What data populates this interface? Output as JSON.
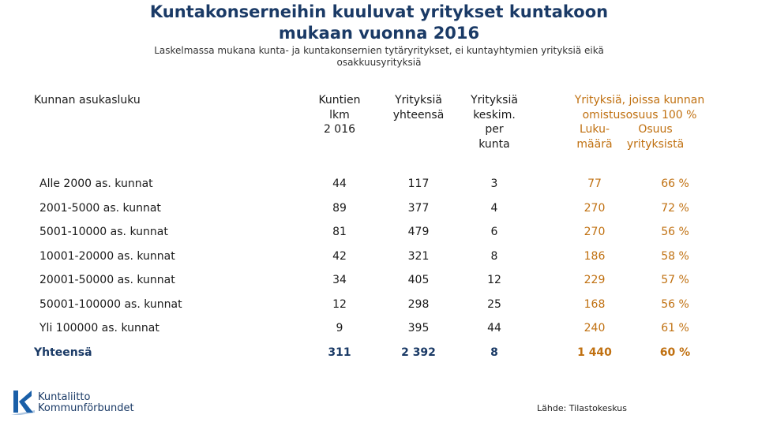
{
  "title_line1": "Kuntakonserneihin kuuluvat yritykset kuntakoon",
  "title_line2": "mukaan vuonna 2016",
  "subtitle_line1": "Laskelmassa mukana kunta- ja kuntakonsernien tytäryritykset, ei kuntayhtymien yrityksiä eikä",
  "subtitle_line2": "osakkuusyrityksiä",
  "headers": {
    "col1": "Kunnan asukasluku",
    "col2": [
      "Kuntien",
      "lkm",
      "2 016"
    ],
    "col3": [
      "Yrityksiä",
      "yhteensä"
    ],
    "col4": [
      "Yrityksiä",
      "keskim.",
      "per",
      "kunta"
    ],
    "group": [
      "Yrityksiä, joissa kunnan",
      "omistusosuus 100 %"
    ],
    "col5": [
      "Luku-",
      "määrä"
    ],
    "col6": [
      "Osuus",
      "yrityksistä"
    ]
  },
  "rows": [
    {
      "label": "Alle 2000 as. kunnat",
      "kuntia": "44",
      "yrityksia": "117",
      "keskim": "3",
      "lukumaara": "77",
      "osuus": "66 %"
    },
    {
      "label": "2001-5000 as. kunnat",
      "kuntia": "89",
      "yrityksia": "377",
      "keskim": "4",
      "lukumaara": "270",
      "osuus": "72 %"
    },
    {
      "label": "5001-10000 as. kunnat",
      "kuntia": "81",
      "yrityksia": "479",
      "keskim": "6",
      "lukumaara": "270",
      "osuus": "56 %"
    },
    {
      "label": "10001-20000 as. kunnat",
      "kuntia": "42",
      "yrityksia": "321",
      "keskim": "8",
      "lukumaara": "186",
      "osuus": "58 %"
    },
    {
      "label": "20001-50000 as. kunnat",
      "kuntia": "34",
      "yrityksia": "405",
      "keskim": "12",
      "lukumaara": "229",
      "osuus": "57 %"
    },
    {
      "label": "50001-100000 as. kunnat",
      "kuntia": "12",
      "yrityksia": "298",
      "keskim": "25",
      "lukumaara": "168",
      "osuus": "56 %"
    },
    {
      "label": "Yli 100000 as. kunnat",
      "kuntia": "9",
      "yrityksia": "395",
      "keskim": "44",
      "lukumaara": "240",
      "osuus": "61 %"
    }
  ],
  "total": {
    "label": "Yhteensä",
    "kuntia": "311",
    "yrityksia": "2 392",
    "keskim": "8",
    "lukumaara": "1 440",
    "osuus": "60 %"
  },
  "logo": {
    "line1": "Kuntaliitto",
    "line2": "Kommunförbundet"
  },
  "source": "Lähde: Tilastokeskus",
  "colors": {
    "title": "#1a3a66",
    "orange": "#c07010",
    "logo_blue": "#1a5fa8"
  }
}
